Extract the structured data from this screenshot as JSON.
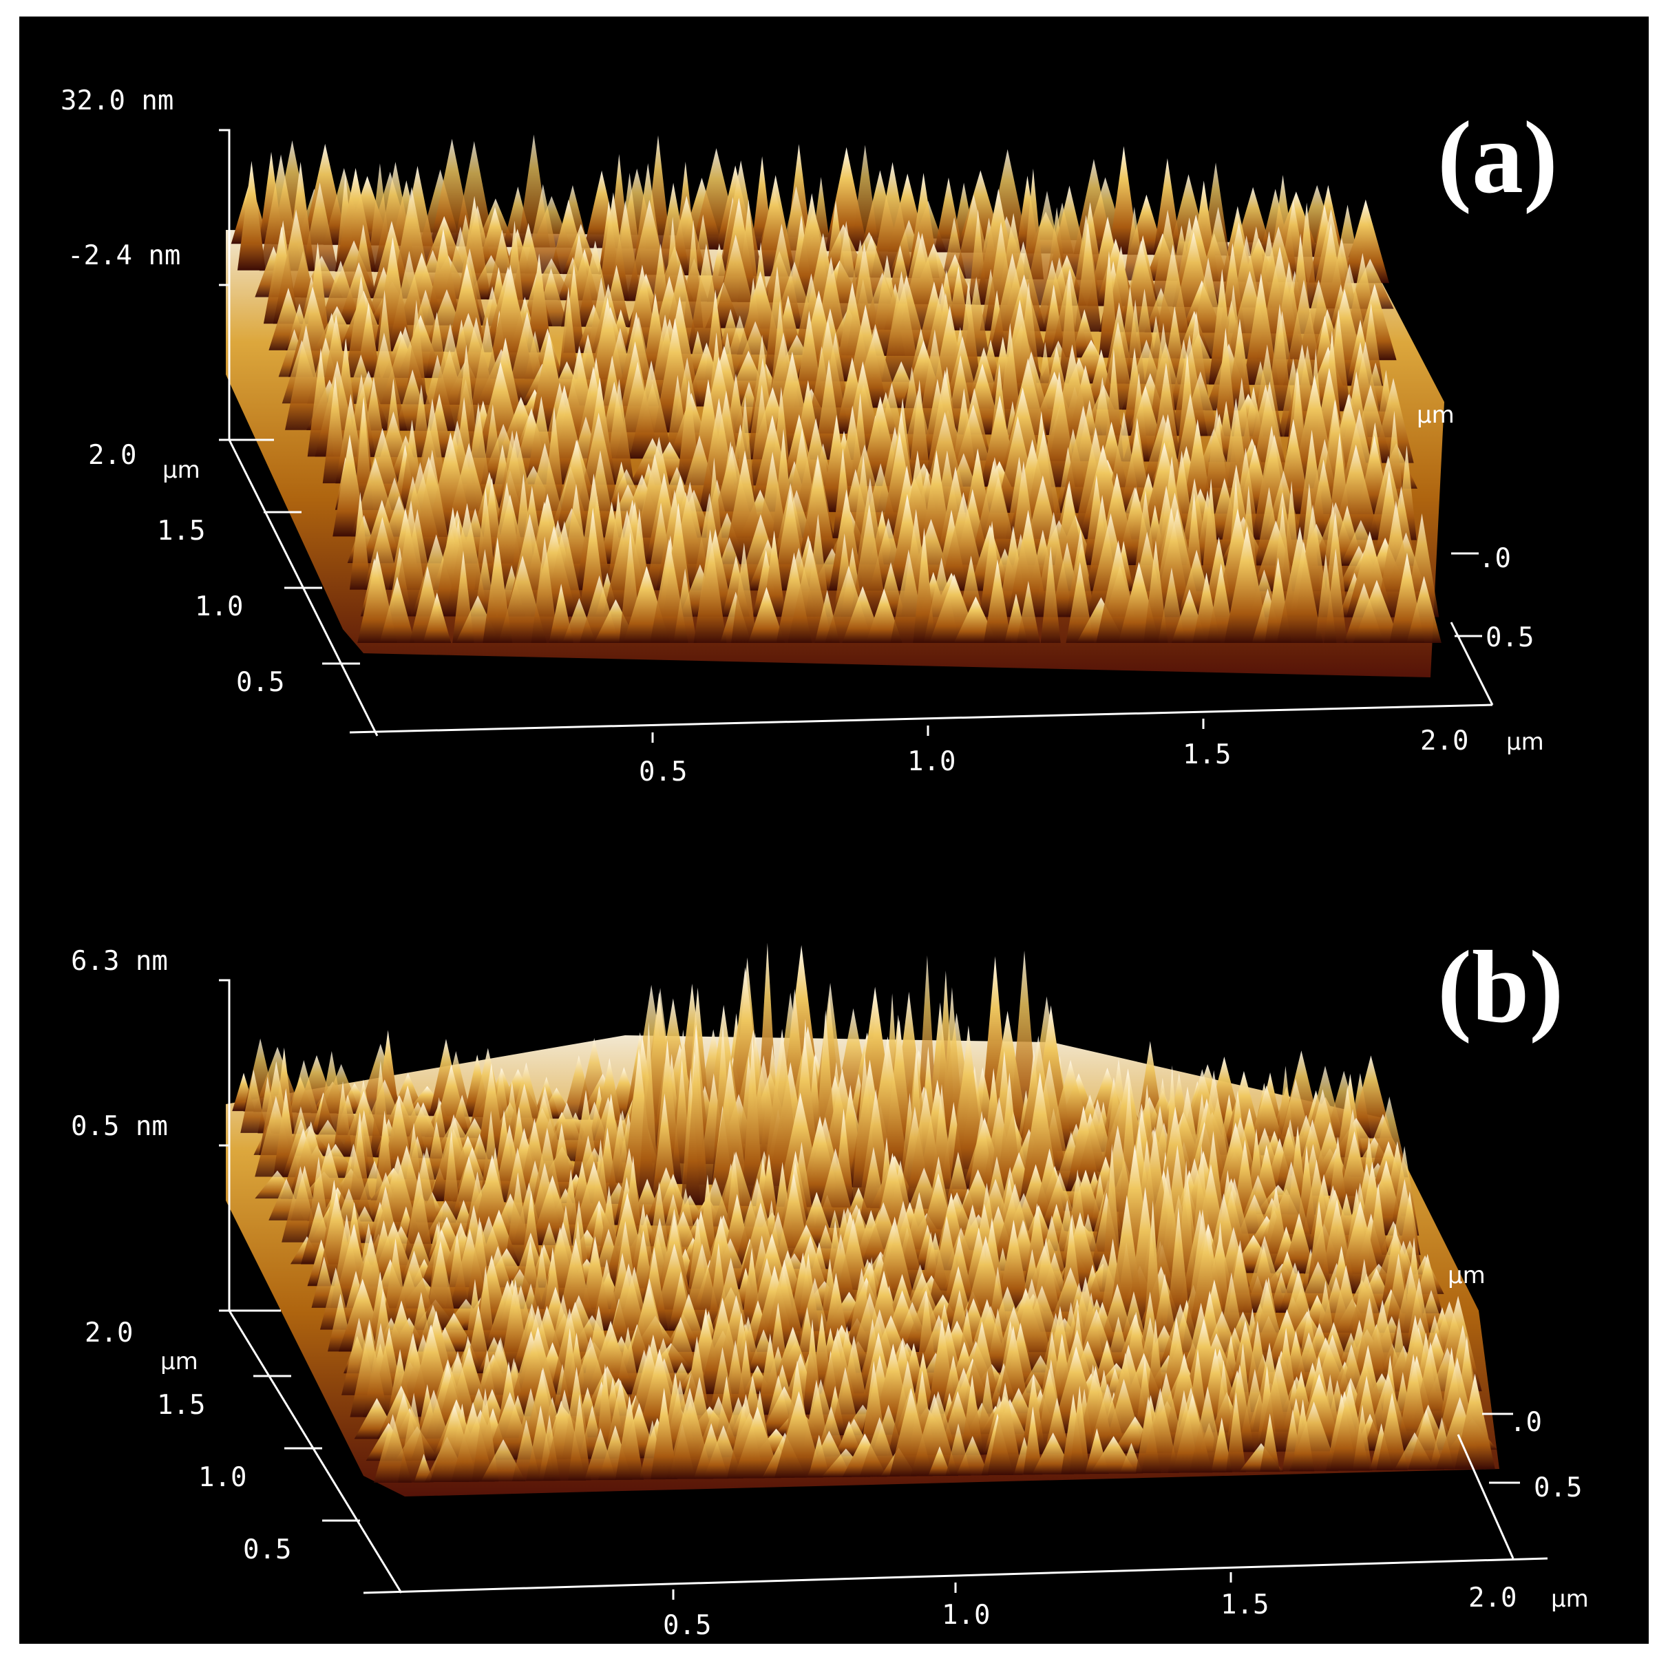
{
  "colors": {
    "background": "#000000",
    "frame": "#ffffff",
    "axis": "#ffffff",
    "surface_low": "#5a1408",
    "surface_mid": "#b86a10",
    "surface_high": "#e8b040",
    "surface_peak": "#fff4dc"
  },
  "panels": [
    {
      "label": "(a)",
      "z_top": "32.0 nm",
      "z_mid": "-2.4 nm",
      "y_axis": {
        "ticks": [
          "2.0",
          "1.5",
          "1.0",
          "0.5"
        ],
        "unit": "µm"
      },
      "x_axis": {
        "ticks": [
          "0.5",
          "1.0",
          "1.5",
          "2.0"
        ],
        "unit": "µm"
      },
      "right_axis": {
        "ticks": [
          ".0",
          "0.5"
        ],
        "unit": "µm"
      }
    },
    {
      "label": "(b)",
      "z_top": "6.3 nm",
      "z_mid": "0.5 nm",
      "y_axis": {
        "ticks": [
          "2.0",
          "1.5",
          "1.0",
          "0.5"
        ],
        "unit": "µm"
      },
      "x_axis": {
        "ticks": [
          "0.5",
          "1.0",
          "1.5",
          "2.0"
        ],
        "unit": "µm"
      },
      "right_axis": {
        "ticks": [
          ".0",
          "0.5"
        ],
        "unit": "µm"
      }
    }
  ]
}
